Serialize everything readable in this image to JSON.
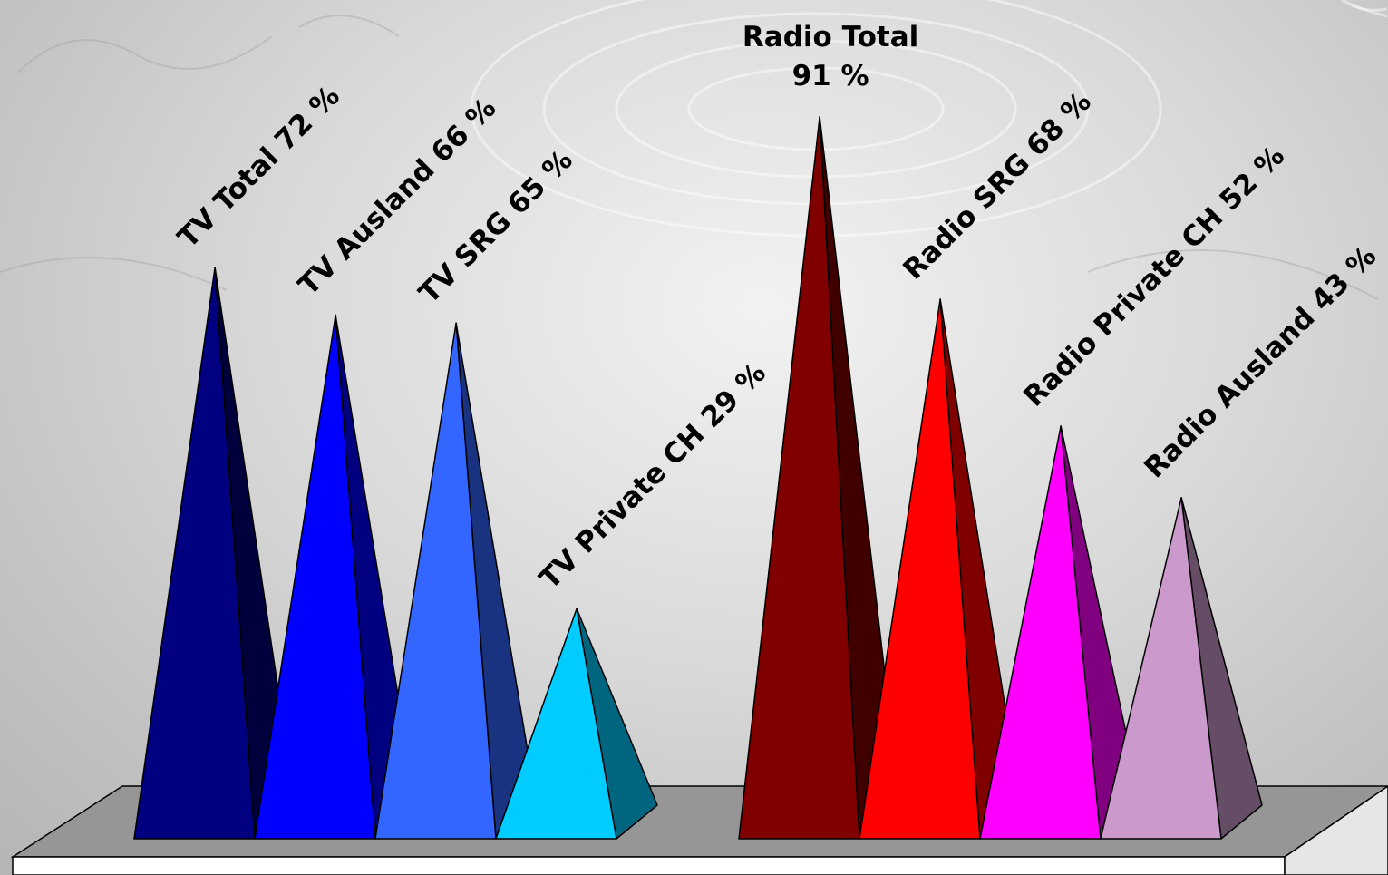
{
  "chart_data": {
    "type": "bar",
    "bar_shape": "pyramid-3d",
    "unit": "%",
    "groups": [
      {
        "items": [
          {
            "label": "TV Total 72 %",
            "value": 72,
            "color": "#000080",
            "shade": "#00003c"
          },
          {
            "label": "TV Ausland 66 %",
            "value": 66,
            "color": "#0000ff",
            "shade": "#000080"
          },
          {
            "label": "TV SRG 65 %",
            "value": 65,
            "color": "#3366ff",
            "shade": "#1a3380"
          },
          {
            "label": "TV Private CH 29 %",
            "value": 29,
            "color": "#00ccff",
            "shade": "#006680"
          }
        ]
      },
      {
        "items": [
          {
            "label": "Radio Total",
            "label2": "91 %",
            "value": 91,
            "color": "#800000",
            "shade": "#400000",
            "label_style": "horizontal"
          },
          {
            "label": "Radio SRG 68 %",
            "value": 68,
            "color": "#ff0000",
            "shade": "#800000"
          },
          {
            "label": "Radio Private CH 52 %",
            "value": 52,
            "color": "#ff00ff",
            "shade": "#800080"
          },
          {
            "label": "Radio Ausland 43 %",
            "value": 43,
            "color": "#cc99cc",
            "shade": "#664d66"
          }
        ]
      }
    ],
    "floor_color": "#969696",
    "floor_side_color": "#ffffff"
  }
}
